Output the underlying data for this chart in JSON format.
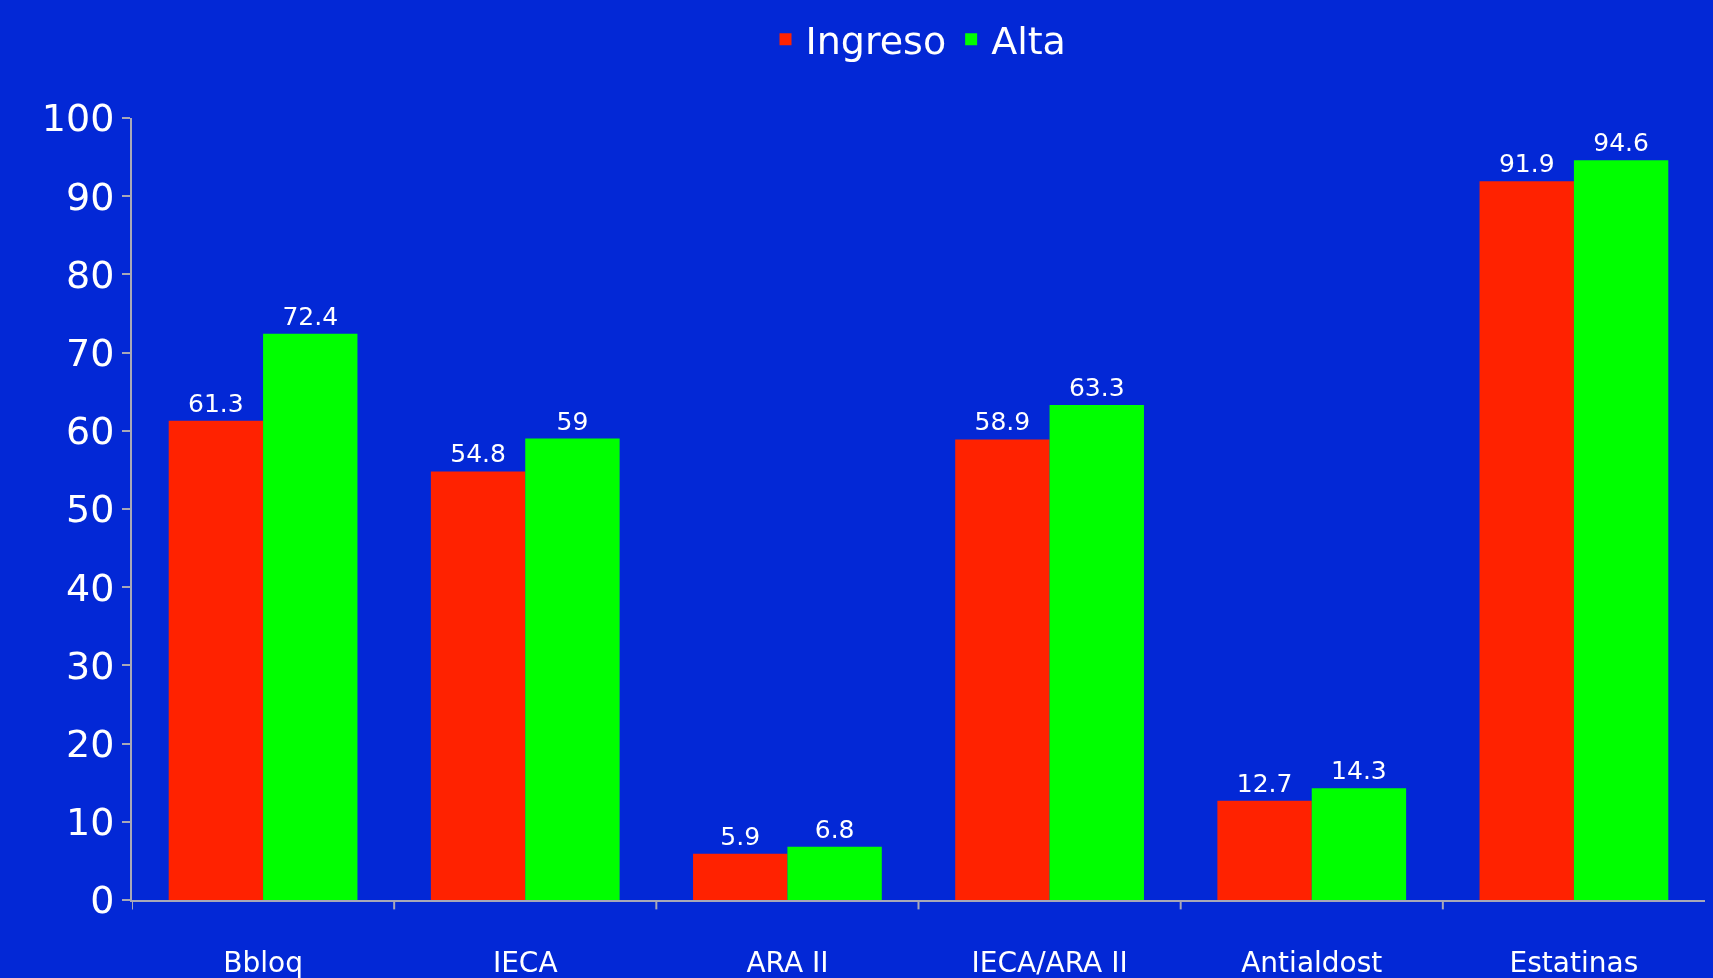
{
  "chart_data": {
    "type": "bar",
    "categories": [
      "Bbloq",
      "IECA",
      "ARA II",
      "IECA/ARA II",
      "Antialdost",
      "Estatinas"
    ],
    "series": [
      {
        "name": "Ingreso",
        "color": "#ff2200",
        "values": [
          61.3,
          54.8,
          5.9,
          58.9,
          12.7,
          91.9
        ]
      },
      {
        "name": "Alta",
        "color": "#00ff00",
        "values": [
          72.4,
          59,
          6.8,
          63.3,
          14.3,
          94.6
        ]
      }
    ],
    "ylim": [
      0,
      100
    ],
    "yticks": [
      0,
      10,
      20,
      30,
      40,
      50,
      60,
      70,
      80,
      90,
      100
    ],
    "grid": false,
    "legend": "top",
    "data_labels": true
  }
}
